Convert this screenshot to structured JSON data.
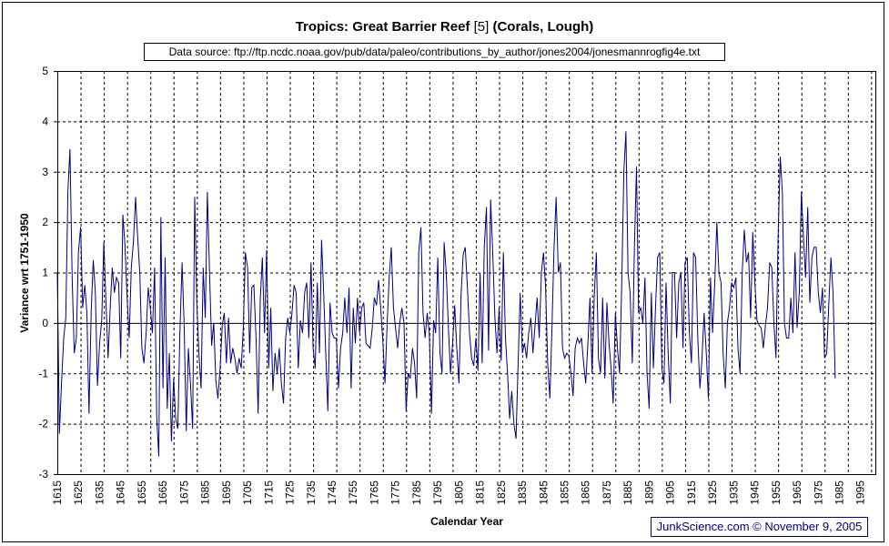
{
  "chart_data": {
    "type": "line",
    "title_main": "Tropics: Great Barrier Reef",
    "title_ref": "[5]",
    "title_tail": "(Corals, Lough)",
    "subtitle": "Data source: ftp://ftp.ncdc.noaa.gov/pub/data/paleo/contributions_by_author/jones2004/jonesmannrogfig4e.txt",
    "xlabel": "Calendar Year",
    "ylabel": "Variance wrt 1751-1950",
    "ylim": [
      -3,
      5
    ],
    "yticks": [
      "-3",
      "-2",
      "-1",
      "0",
      "1",
      "2",
      "3",
      "4",
      "5"
    ],
    "xlim": [
      1615,
      2002
    ],
    "xticks": [
      "1615",
      "1625",
      "1635",
      "1645",
      "1655",
      "1665",
      "1675",
      "1685",
      "1695",
      "1705",
      "1715",
      "1725",
      "1735",
      "1745",
      "1755",
      "1765",
      "1775",
      "1785",
      "1795",
      "1805",
      "1815",
      "1825",
      "1835",
      "1845",
      "1855",
      "1865",
      "1875",
      "1885",
      "1895",
      "1905",
      "1915",
      "1925",
      "1935",
      "1945",
      "1955",
      "1965",
      "1975",
      "1985",
      "1995"
    ],
    "grid": true,
    "line_color": "#000080",
    "series": [
      {
        "name": "Great Barrier Reef corals",
        "start_year": 1615,
        "values": [
          1.0,
          -2.2,
          -1.2,
          -0.3,
          0.1,
          2.6,
          3.45,
          0.9,
          -0.6,
          -0.3,
          1.4,
          1.9,
          0.3,
          0.75,
          0.2,
          -1.8,
          0.2,
          1.25,
          0.6,
          -1.25,
          -0.4,
          0.05,
          1.6,
          0.45,
          -0.7,
          0.3,
          1.1,
          0.6,
          0.9,
          0.8,
          -0.7,
          2.15,
          1.55,
          0.5,
          -0.3,
          1.1,
          1.6,
          2.5,
          1.7,
          1.0,
          -0.5,
          -0.8,
          -0.2,
          0.7,
          0.3,
          -0.2,
          1.1,
          -1.85,
          -2.65,
          2.1,
          -1.3,
          1.3,
          -1.7,
          -0.6,
          -2.35,
          -1.1,
          -1.9,
          -2.1,
          -0.2,
          1.2,
          -0.05,
          -2.15,
          -0.5,
          -1.2,
          -2.1,
          2.5,
          0.4,
          -0.6,
          -1.3,
          1.1,
          0.1,
          2.6,
          1.0,
          -0.45,
          0.0,
          -1.15,
          -1.5,
          -0.9,
          -0.05,
          0.2,
          -0.8,
          0.1,
          -0.8,
          -0.5,
          -0.7,
          -1.0,
          -0.7,
          -0.9,
          -0.1,
          1.4,
          1.1,
          -0.6,
          0.7,
          0.75,
          -0.3,
          -1.8,
          0.45,
          1.3,
          -0.2,
          1.45,
          -0.9,
          0.3,
          -1.35,
          -0.6,
          -1.0,
          -0.5,
          -1.2,
          -1.6,
          -0.3,
          0.1,
          -0.2,
          0.2,
          0.75,
          0.6,
          -0.9,
          0.05,
          -0.2,
          0.6,
          0.8,
          -0.3,
          1.2,
          -0.5,
          -0.9,
          0.8,
          -0.6,
          1.65,
          0.6,
          -0.6,
          -1.75,
          0.4,
          -0.2,
          -0.3,
          -0.3,
          -1.3,
          -0.5,
          -0.2,
          0.5,
          -0.2,
          0.7,
          -1.3,
          0.3,
          -0.4,
          0.5,
          -0.2,
          0.3,
          0.4,
          -0.4,
          -0.45,
          -0.5,
          -0.1,
          0.5,
          0.35,
          0.85,
          0.3,
          -0.35,
          -1.2,
          -0.05,
          0.9,
          1.5,
          0.3,
          -0.1,
          -0.5,
          0.0,
          0.3,
          0.0,
          -1.75,
          -1.0,
          -1.1,
          -0.5,
          -0.8,
          -1.5,
          1.4,
          1.9,
          0.2,
          -0.3,
          0.2,
          -0.2,
          -1.8,
          0.05,
          -0.2,
          1.3,
          -0.6,
          -1.0,
          1.6,
          1.0,
          -0.1,
          -1.0,
          -0.4,
          0.35,
          -0.5,
          -1.2,
          0.55,
          1.35,
          1.5,
          0.7,
          -0.2,
          -0.7,
          -0.85,
          -0.3,
          -0.95,
          1.0,
          -0.8,
          1.5,
          2.3,
          -0.55,
          2.45,
          1.4,
          0.1,
          -0.6,
          0.3,
          -0.75,
          1.4,
          -0.3,
          -1.0,
          -1.9,
          -1.35,
          -2.0,
          -2.3,
          -0.8,
          0.6,
          -0.6,
          -0.4,
          -0.7,
          -0.2,
          0.1,
          -0.6,
          -0.05,
          0.5,
          -0.3,
          1.0,
          1.4,
          0.7,
          -0.8,
          -1.5,
          -0.1,
          1.5,
          2.5,
          1.0,
          1.2,
          -0.5,
          -0.7,
          -0.6,
          -0.65,
          -1.0,
          -1.45,
          -0.5,
          -0.3,
          -0.4,
          -0.3,
          -0.8,
          -1.2,
          -0.4,
          0.5,
          -1.0,
          0.5,
          1.4,
          -0.7,
          -1.0,
          0.5,
          -1.1,
          0.4,
          -0.4,
          -0.9,
          -1.6,
          0.2,
          -0.5,
          -1.0,
          0.7,
          3.0,
          3.8,
          1.0,
          0.6,
          -0.8,
          1.5,
          3.1,
          0.2,
          0.3,
          0.0,
          0.9,
          -1.0,
          -1.7,
          0.6,
          -0.9,
          0.3,
          1.3,
          1.4,
          -0.9,
          -1.2,
          0.8,
          -0.6,
          -1.6,
          1.0,
          1.0,
          -0.3,
          0.8,
          1.0,
          -0.5,
          1.2,
          1.3,
          -0.2,
          -0.8,
          1.4,
          1.3,
          -0.3,
          -1.3,
          -0.7,
          0.2,
          -0.6,
          -1.5,
          0.9,
          -0.2,
          0.8,
          2.0,
          1.0,
          0.8,
          -0.6,
          -1.3,
          0.0,
          0.3,
          0.8,
          0.7,
          0.9,
          -0.5,
          -1.0,
          1.0,
          1.85,
          1.2,
          1.4,
          0.1,
          1.8,
          0.8,
          0.05,
          -0.05,
          -0.1,
          -0.5,
          -0.05,
          0.3,
          1.2,
          1.1,
          0.0,
          -0.7,
          1.7,
          3.3,
          2.6,
          0.0,
          -0.3,
          -0.3,
          0.5,
          -0.2,
          1.4,
          -0.1,
          0.6,
          2.6,
          1.7,
          0.9,
          2.3,
          0.4,
          1.3,
          1.5,
          1.5,
          0.6,
          0.2,
          0.7,
          -0.7,
          -0.6,
          0.4,
          1.3,
          0.6,
          -1.1
        ]
      }
    ]
  },
  "footer": "JunkScience.com ©  November 9, 2005"
}
